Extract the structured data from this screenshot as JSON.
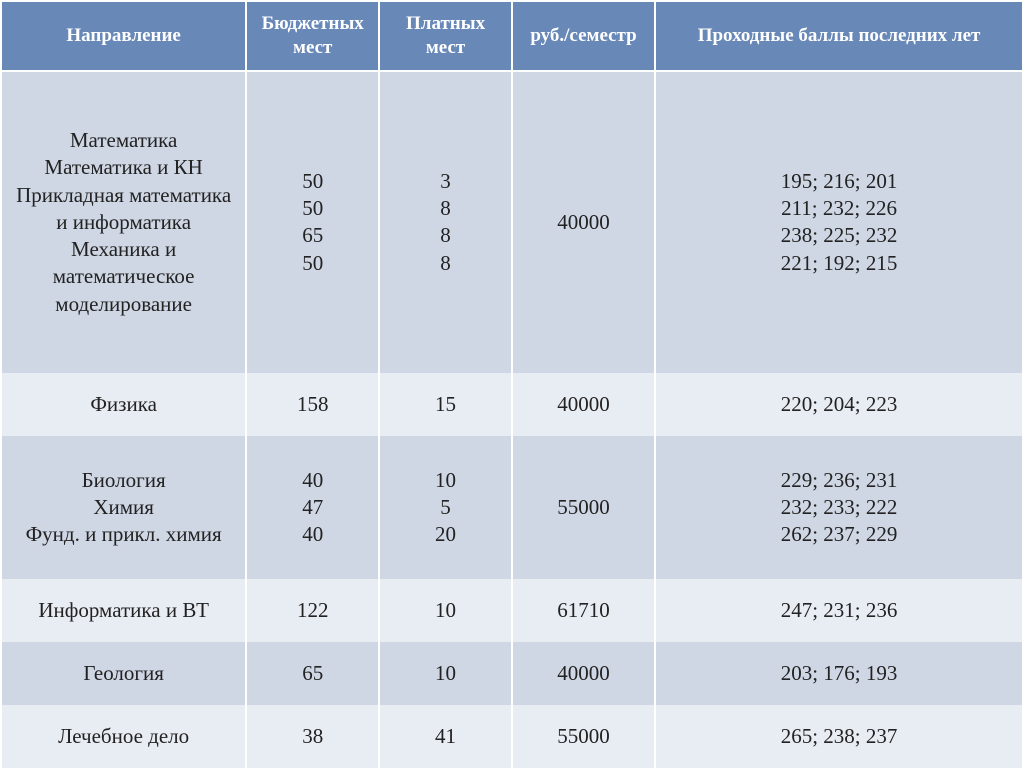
{
  "colors": {
    "header_bg": "#6888b8",
    "header_text": "#ffffff",
    "band_a": "#cfd6e4",
    "band_b": "#e8ecf3",
    "cell_text": "#222222",
    "border": "#ffffff"
  },
  "typography": {
    "header_fontsize_pt": 15,
    "body_fontsize_pt": 16,
    "font_family": "Times New Roman"
  },
  "columns": [
    {
      "key": "direction",
      "label": "Направление",
      "width_pct": 24
    },
    {
      "key": "budget",
      "label": "Бюджетных мест",
      "width_pct": 13
    },
    {
      "key": "paid",
      "label": "Платных мест",
      "width_pct": 13
    },
    {
      "key": "rub",
      "label": "руб./семестр",
      "width_pct": 14
    },
    {
      "key": "scores",
      "label": "Проходные баллы последних лет",
      "width_pct": 36
    }
  ],
  "rows": [
    {
      "band": "a",
      "direction": "Математика\nМатематика и КН\nПрикладная математика и информатика\nМеханика и математическое моделирование",
      "budget": "50\n50\n65\n50",
      "paid": "3\n8\n8\n8",
      "rub": "40000",
      "scores": "195; 216; 201\n211; 232; 226\n238; 225; 232\n221; 192; 215"
    },
    {
      "band": "b",
      "direction": "Физика",
      "budget": "158",
      "paid": "15",
      "rub": "40000",
      "scores": "220; 204; 223"
    },
    {
      "band": "a",
      "direction": "Биология\nХимия\nФунд. и прикл. химия",
      "budget": "40\n47\n40",
      "paid": "10\n5\n20",
      "rub": "55000",
      "scores": "229; 236; 231\n232; 233; 222\n262; 237; 229"
    },
    {
      "band": "b",
      "direction": "Информатика и ВТ",
      "budget": "122",
      "paid": "10",
      "rub": "61710",
      "scores": "247; 231; 236"
    },
    {
      "band": "a",
      "direction": "Геология",
      "budget": "65",
      "paid": "10",
      "rub": "40000",
      "scores": "203; 176; 193"
    },
    {
      "band": "b",
      "direction": "Лечебное дело",
      "budget": "38",
      "paid": "41",
      "rub": "55000",
      "scores": "265; 238; 237"
    }
  ]
}
